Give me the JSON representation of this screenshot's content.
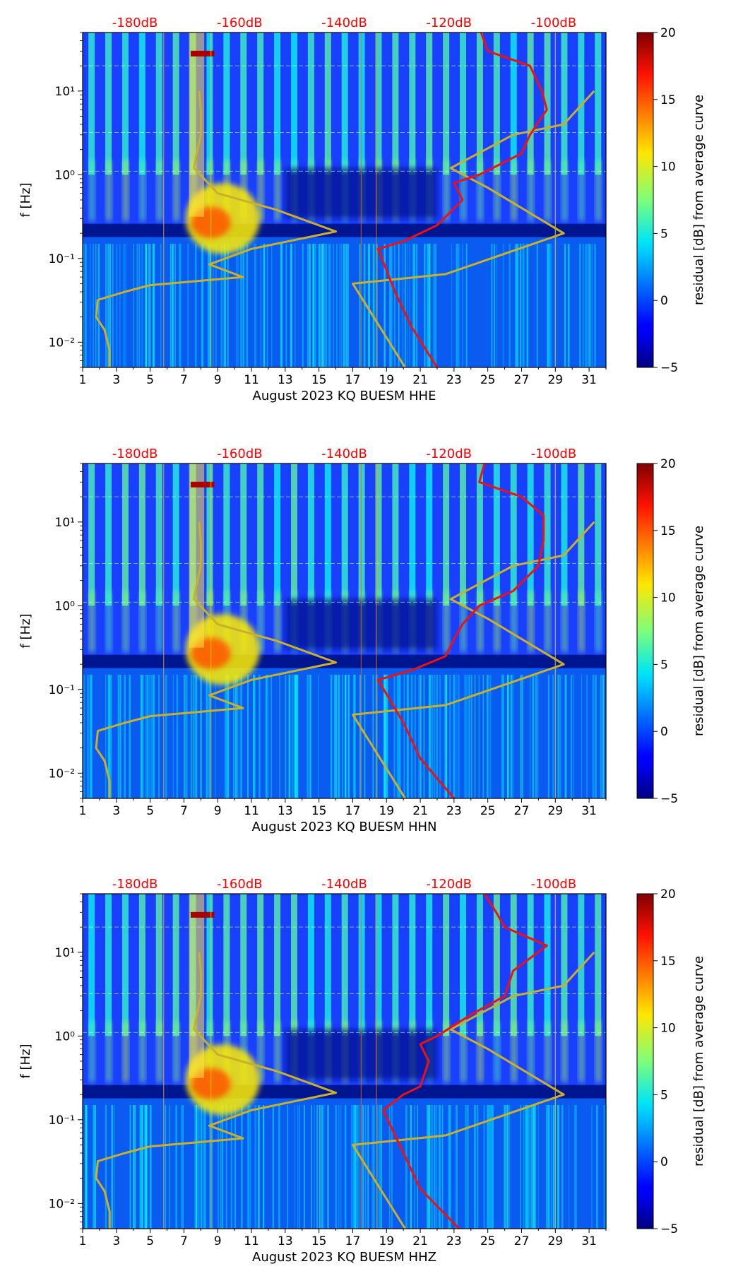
{
  "colorbar": {
    "label": "residual [dB] from average curve",
    "vmin": -5,
    "vmax": 20,
    "ticks": [
      -5,
      0,
      5,
      10,
      15,
      20
    ],
    "colormap": "jet"
  },
  "colors": {
    "red_curve": "#ee1111",
    "gold_curve": "#c9b02c",
    "top_labels": "#ff0000"
  },
  "chart_data": [
    {
      "type": "heatmap",
      "title": "",
      "xlabel": "August 2023 KQ BUESM  HHE",
      "ylabel": "f [Hz]",
      "xlim": [
        1,
        32
      ],
      "ylim": [
        0.005,
        50
      ],
      "yscale": "log",
      "x_ticks": [
        "1",
        "3",
        "5",
        "7",
        "9",
        "11",
        "13",
        "15",
        "17",
        "19",
        "21",
        "23",
        "25",
        "27",
        "29",
        "31"
      ],
      "y_ticks": [
        {
          "label": "10⁻²",
          "value": 0.01
        },
        {
          "label": "10⁻¹",
          "value": 0.1
        },
        {
          "label": "10⁰",
          "value": 1
        },
        {
          "label": "10¹",
          "value": 10
        }
      ],
      "top_axis": {
        "labels": [
          "-180dB",
          "-160dB",
          "-140dB",
          "-120dB",
          "-100dB"
        ],
        "day_positions": [
          4.1,
          10.3,
          16.5,
          22.7,
          28.9
        ]
      },
      "gold_curve": [
        [
          2.6,
          0.005
        ],
        [
          2.6,
          0.008
        ],
        [
          2.3,
          0.014
        ],
        [
          1.8,
          0.02
        ],
        [
          1.9,
          0.032
        ],
        [
          3.5,
          0.04
        ],
        [
          5,
          0.048
        ],
        [
          10.5,
          0.06
        ],
        [
          8.5,
          0.085
        ],
        [
          11,
          0.13
        ],
        [
          16,
          0.21
        ],
        [
          12.5,
          0.38
        ],
        [
          9,
          0.6
        ],
        [
          7.6,
          1.2
        ],
        [
          7.7,
          1.6
        ],
        [
          8,
          3
        ],
        [
          8,
          6
        ],
        [
          7.9,
          10
        ]
      ],
      "gold_curve_2": [
        [
          20.1,
          0.005
        ],
        [
          17,
          0.05
        ],
        [
          22.5,
          0.065
        ],
        [
          29.5,
          0.2
        ],
        [
          25,
          0.7
        ],
        [
          22.8,
          1.2
        ],
        [
          26.5,
          3
        ],
        [
          29.5,
          4
        ],
        [
          31.3,
          10
        ]
      ],
      "red_curve": [
        [
          22,
          0.005
        ],
        [
          20.5,
          0.015
        ],
        [
          19.5,
          0.04
        ],
        [
          18.5,
          0.13
        ],
        [
          20,
          0.16
        ],
        [
          22,
          0.25
        ],
        [
          23.5,
          0.5
        ],
        [
          23,
          0.8
        ],
        [
          24.5,
          1
        ],
        [
          27,
          1.8
        ],
        [
          27.5,
          3
        ],
        [
          28.5,
          6
        ],
        [
          28.2,
          10
        ],
        [
          27.5,
          20
        ],
        [
          25,
          30
        ],
        [
          24.6,
          50
        ]
      ]
    },
    {
      "type": "heatmap",
      "title": "",
      "xlabel": "August 2023 KQ BUESM  HHN",
      "ylabel": "f [Hz]",
      "xlim": [
        1,
        32
      ],
      "ylim": [
        0.005,
        50
      ],
      "yscale": "log",
      "x_ticks": [
        "1",
        "3",
        "5",
        "7",
        "9",
        "11",
        "13",
        "15",
        "17",
        "19",
        "21",
        "23",
        "25",
        "27",
        "29",
        "31"
      ],
      "y_ticks": [
        {
          "label": "10⁻²",
          "value": 0.01
        },
        {
          "label": "10⁻¹",
          "value": 0.1
        },
        {
          "label": "10⁰",
          "value": 1
        },
        {
          "label": "10¹",
          "value": 10
        }
      ],
      "top_axis": {
        "labels": [
          "-180dB",
          "-160dB",
          "-140dB",
          "-120dB",
          "-100dB"
        ],
        "day_positions": [
          4.1,
          10.3,
          16.5,
          22.7,
          28.9
        ]
      },
      "gold_curve": [
        [
          2.6,
          0.005
        ],
        [
          2.6,
          0.008
        ],
        [
          2.3,
          0.014
        ],
        [
          1.8,
          0.02
        ],
        [
          1.9,
          0.032
        ],
        [
          3.5,
          0.04
        ],
        [
          5,
          0.048
        ],
        [
          10.5,
          0.06
        ],
        [
          8.5,
          0.085
        ],
        [
          11,
          0.13
        ],
        [
          16,
          0.21
        ],
        [
          12.5,
          0.38
        ],
        [
          9,
          0.6
        ],
        [
          7.6,
          1.2
        ],
        [
          7.7,
          1.6
        ],
        [
          8,
          3
        ],
        [
          8,
          6
        ],
        [
          7.9,
          10
        ]
      ],
      "gold_curve_2": [
        [
          20.1,
          0.005
        ],
        [
          17,
          0.05
        ],
        [
          22.5,
          0.065
        ],
        [
          29.5,
          0.2
        ],
        [
          25,
          0.7
        ],
        [
          22.8,
          1.2
        ],
        [
          26.5,
          3
        ],
        [
          29.5,
          4
        ],
        [
          31.3,
          10
        ]
      ],
      "red_curve": [
        [
          23,
          0.005
        ],
        [
          21,
          0.015
        ],
        [
          20,
          0.04
        ],
        [
          18.5,
          0.13
        ],
        [
          20.5,
          0.17
        ],
        [
          22.5,
          0.25
        ],
        [
          23,
          0.4
        ],
        [
          23.5,
          0.6
        ],
        [
          24.5,
          1
        ],
        [
          26.5,
          1.5
        ],
        [
          28,
          3
        ],
        [
          28.3,
          6
        ],
        [
          28.3,
          12
        ],
        [
          27,
          20
        ],
        [
          24.5,
          30
        ],
        [
          24.8,
          50
        ]
      ]
    },
    {
      "type": "heatmap",
      "title": "",
      "xlabel": "August 2023 KQ BUESM  HHZ",
      "ylabel": "f [Hz]",
      "xlim": [
        1,
        32
      ],
      "ylim": [
        0.005,
        50
      ],
      "yscale": "log",
      "x_ticks": [
        "1",
        "3",
        "5",
        "7",
        "9",
        "11",
        "13",
        "15",
        "17",
        "19",
        "21",
        "23",
        "25",
        "27",
        "29",
        "31"
      ],
      "y_ticks": [
        {
          "label": "10⁻²",
          "value": 0.01
        },
        {
          "label": "10⁻¹",
          "value": 0.1
        },
        {
          "label": "10⁰",
          "value": 1
        },
        {
          "label": "10¹",
          "value": 10
        }
      ],
      "top_axis": {
        "labels": [
          "-180dB",
          "-160dB",
          "-140dB",
          "-120dB",
          "-100dB"
        ],
        "day_positions": [
          4.1,
          10.3,
          16.5,
          22.7,
          28.9
        ]
      },
      "gold_curve": [
        [
          2.6,
          0.005
        ],
        [
          2.6,
          0.008
        ],
        [
          2.3,
          0.014
        ],
        [
          1.8,
          0.02
        ],
        [
          1.9,
          0.032
        ],
        [
          3.5,
          0.04
        ],
        [
          5,
          0.048
        ],
        [
          10.5,
          0.06
        ],
        [
          8.5,
          0.085
        ],
        [
          11,
          0.13
        ],
        [
          16,
          0.21
        ],
        [
          12.5,
          0.38
        ],
        [
          9,
          0.6
        ],
        [
          7.6,
          1.2
        ],
        [
          7.7,
          1.6
        ],
        [
          8,
          3
        ],
        [
          8,
          6
        ],
        [
          7.9,
          10
        ]
      ],
      "gold_curve_2": [
        [
          20.1,
          0.005
        ],
        [
          17,
          0.05
        ],
        [
          22.5,
          0.065
        ],
        [
          29.5,
          0.2
        ],
        [
          25,
          0.7
        ],
        [
          22.8,
          1.2
        ],
        [
          26.5,
          3
        ],
        [
          29.5,
          4
        ],
        [
          31.3,
          10
        ]
      ],
      "red_curve": [
        [
          23.3,
          0.005
        ],
        [
          21,
          0.015
        ],
        [
          20,
          0.04
        ],
        [
          18.8,
          0.13
        ],
        [
          20,
          0.2
        ],
        [
          21,
          0.25
        ],
        [
          21.5,
          0.5
        ],
        [
          21,
          0.8
        ],
        [
          22,
          1
        ],
        [
          24,
          1.8
        ],
        [
          26,
          3
        ],
        [
          26.5,
          6
        ],
        [
          28.5,
          12
        ],
        [
          26,
          20
        ],
        [
          25.5,
          30
        ],
        [
          24.8,
          50
        ]
      ]
    }
  ]
}
